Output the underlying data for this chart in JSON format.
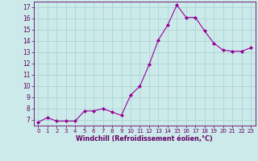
{
  "x": [
    0,
    1,
    2,
    3,
    4,
    5,
    6,
    7,
    8,
    9,
    10,
    11,
    12,
    13,
    14,
    15,
    16,
    17,
    18,
    19,
    20,
    21,
    22,
    23
  ],
  "y": [
    6.8,
    7.2,
    6.9,
    6.9,
    6.9,
    7.8,
    7.8,
    8.0,
    7.7,
    7.4,
    9.2,
    10.0,
    11.9,
    14.1,
    15.4,
    17.2,
    16.1,
    16.1,
    14.9,
    13.8,
    13.2,
    13.1,
    13.1,
    13.4
  ],
  "line_color": "#990099",
  "marker": "D",
  "marker_size": 2.0,
  "bg_color": "#cceaea",
  "grid_color": "#aad4d4",
  "xlabel": "Windchill (Refroidissement éolien,°C)",
  "xlabel_color": "#660066",
  "tick_color": "#660066",
  "ylim": [
    6.5,
    17.5
  ],
  "yticks": [
    7,
    8,
    9,
    10,
    11,
    12,
    13,
    14,
    15,
    16,
    17
  ],
  "xlim": [
    -0.5,
    23.5
  ],
  "xtick_fontsize": 5.0,
  "ytick_fontsize": 5.5,
  "xlabel_fontsize": 5.8
}
